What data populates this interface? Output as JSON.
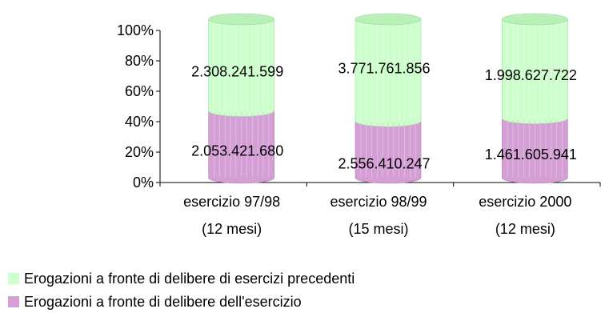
{
  "chart_data": {
    "type": "bar",
    "stacked": "percent",
    "style": "3d-cylinder",
    "categories": [
      [
        "esercizio 97/98",
        "(12 mesi)"
      ],
      [
        "esercizio 98/99",
        "(15 mesi)"
      ],
      [
        "esercizio 2000",
        "(12 mesi)"
      ]
    ],
    "series": [
      {
        "name": "Erogazioni a fronte di delibere dell'esercizio",
        "color": "#d49fd4",
        "values": [
          2053421680,
          2556410247,
          1461605941
        ],
        "labels": [
          "2.053.421.680",
          "2.556.410.247",
          "1.461.605.941"
        ]
      },
      {
        "name": "Erogazioni a fronte di delibere di esercizi precedenti",
        "color": "#ccffcc",
        "values": [
          2308241599,
          3771761856,
          1998627722
        ],
        "labels": [
          "2.308.241.599",
          "3.771.761.856",
          "1.998.627.722"
        ]
      }
    ],
    "y_ticks": [
      "0%",
      "20%",
      "40%",
      "60%",
      "80%",
      "100%"
    ],
    "ylim": [
      0,
      100
    ],
    "grid": false,
    "legend_position": "bottom-left"
  }
}
